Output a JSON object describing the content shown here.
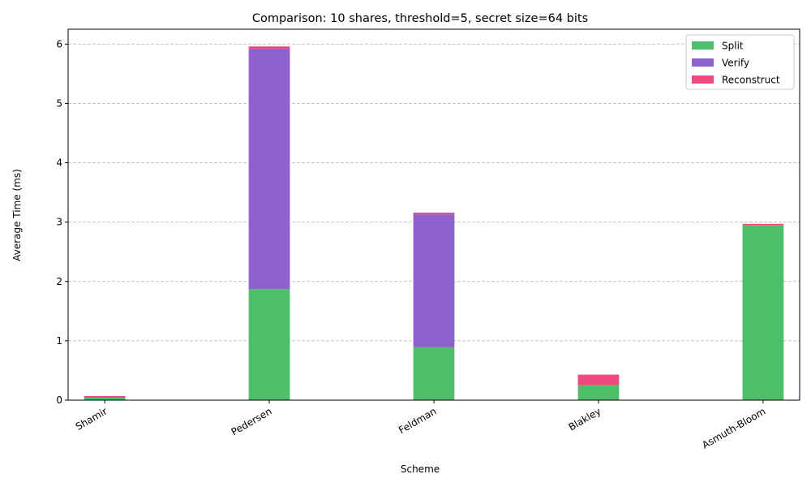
{
  "chart_data": {
    "type": "bar",
    "stacked": true,
    "title": "Comparison: 10 shares, threshold=5, secret size=64 bits",
    "xlabel": "Scheme",
    "ylabel": "Average Time (ms)",
    "categories": [
      "Shamir",
      "Pedersen",
      "Feldman",
      "Blakley",
      "Asmuth-Bloom"
    ],
    "series": [
      {
        "name": "Split",
        "color": "#4fbe6b",
        "values": [
          0.04,
          1.87,
          0.89,
          0.26,
          2.95
        ]
      },
      {
        "name": "Verify",
        "color": "#8e61cd",
        "values": [
          0.0,
          4.05,
          2.24,
          0.0,
          0.0
        ]
      },
      {
        "name": "Reconstruct",
        "color": "#ee4a80",
        "values": [
          0.03,
          0.04,
          0.03,
          0.17,
          0.02
        ]
      }
    ],
    "ylim": [
      0,
      6.25
    ],
    "yticks": [
      "0",
      "1",
      "2",
      "3",
      "4",
      "5",
      "6"
    ],
    "grid": "y-dashed",
    "legend_position": "top-right"
  }
}
